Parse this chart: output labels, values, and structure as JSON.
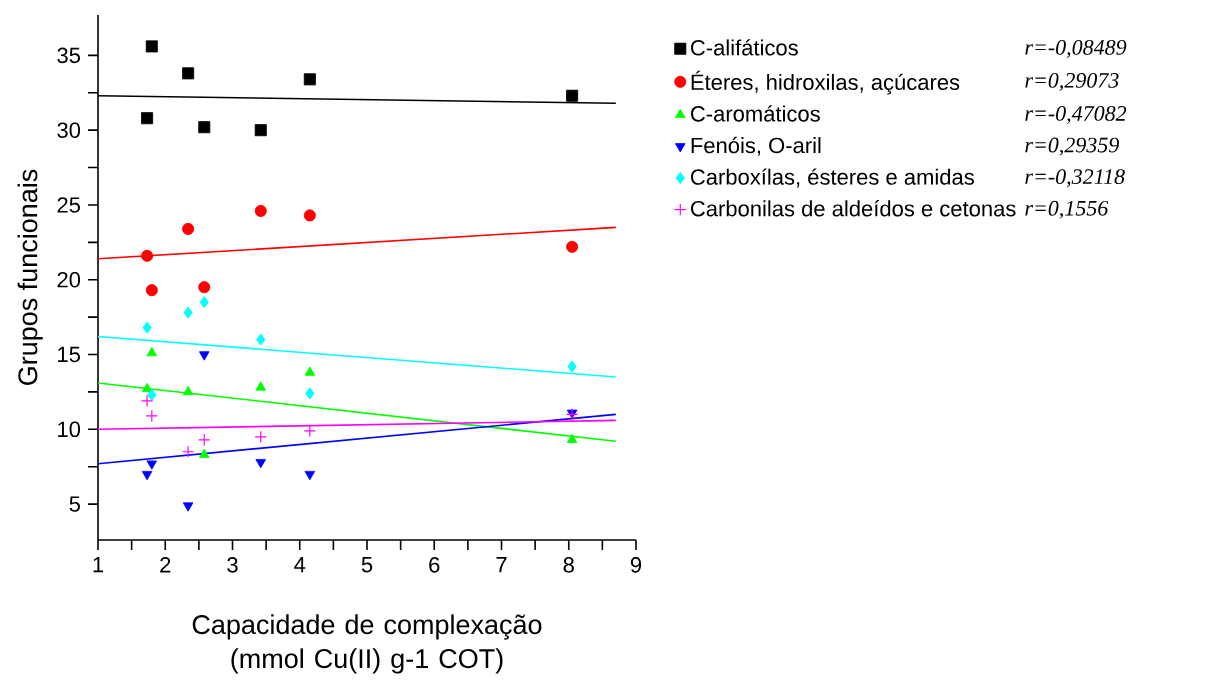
{
  "chart_data": {
    "type": "scatter",
    "xlabel": "Capacidade de complexação (mmol Cu(II) g-1 COT)",
    "ylabel": "Grupos funcionais",
    "xlim": [
      1,
      9
    ],
    "ylim": [
      2.6,
      37.7
    ],
    "xticks": [
      1,
      {
        "value": 1.5,
        "label": null
      },
      2,
      {
        "value": 2.5,
        "label": null
      },
      3,
      {
        "value": 3.5,
        "label": null
      },
      4,
      {
        "value": 4.5,
        "label": null
      },
      5,
      {
        "value": 5.5,
        "label": null
      },
      6,
      {
        "value": 6.5,
        "label": null
      },
      7,
      {
        "value": 7.5,
        "label": null
      },
      8,
      {
        "value": 8.5,
        "label": null
      },
      9
    ],
    "yticks": [
      5,
      {
        "value": 7.5,
        "label": null
      },
      10,
      {
        "value": 12.5,
        "label": null
      },
      15,
      {
        "value": 17.5,
        "label": null
      },
      20,
      {
        "value": 22.5,
        "label": null
      },
      25,
      {
        "value": 27.5,
        "label": null
      },
      30,
      {
        "value": 32.5,
        "label": null
      },
      35
    ],
    "grid": false,
    "legend": "right",
    "annotations": [
      "r=-0,08489",
      "r=0,29073",
      "r=-0,47082",
      "r=0,29359",
      "r=-0,32118",
      "r=0,1556"
    ],
    "series": [
      {
        "name": "C-alifáticos",
        "color": "#000000",
        "marker": "square",
        "x": [
          1.73,
          1.8,
          2.34,
          2.58,
          3.42,
          4.15,
          8.05
        ],
        "values": [
          30.8,
          35.6,
          33.8,
          30.2,
          30.0,
          33.4,
          32.3
        ]
      },
      {
        "name": "Éteres, hidroxilas, açúcares",
        "color": "#ff0000",
        "marker": "circle",
        "x": [
          1.73,
          1.8,
          2.34,
          2.58,
          3.42,
          4.15,
          8.05
        ],
        "values": [
          21.6,
          19.3,
          23.4,
          19.5,
          24.6,
          24.3,
          22.2
        ]
      },
      {
        "name": "C-aromáticos",
        "color": "#00ff00",
        "marker": "triangle",
        "x": [
          1.73,
          1.8,
          2.34,
          2.58,
          3.42,
          4.15,
          8.05
        ],
        "values": [
          12.7,
          15.1,
          12.5,
          8.3,
          12.8,
          13.8,
          9.3
        ]
      },
      {
        "name": "Fenóis, O-aril",
        "color": "#0000ff",
        "marker": "triangle_down",
        "x": [
          1.73,
          1.8,
          2.34,
          2.58,
          3.42,
          4.15,
          8.05
        ],
        "values": [
          7.0,
          7.7,
          4.9,
          15.0,
          7.8,
          7.0,
          11.1
        ]
      },
      {
        "name": "Carboxílas, ésteres e amidas",
        "color": "#00ffff",
        "marker": "diamond",
        "x": [
          1.73,
          1.8,
          2.34,
          2.58,
          3.42,
          4.15,
          8.05
        ],
        "values": [
          16.8,
          12.3,
          17.8,
          18.5,
          16.0,
          12.4,
          14.2
        ]
      },
      {
        "name": "Carbonilas de aldeídos e cetonas",
        "color": "#ff00ff",
        "marker": "cross",
        "x": [
          1.73,
          1.8,
          2.34,
          2.58,
          3.42,
          4.15,
          8.05
        ],
        "values": [
          11.9,
          10.9,
          8.5,
          9.3,
          9.5,
          9.9,
          11.0
        ]
      },
      {
        "type": "line",
        "color": "#000000",
        "x": [
          1,
          8.7
        ],
        "values": [
          32.3,
          31.8
        ]
      },
      {
        "type": "line",
        "color": "#ff0000",
        "x": [
          1,
          8.7
        ],
        "values": [
          21.4,
          23.5
        ]
      },
      {
        "type": "line",
        "color": "#00ff00",
        "x": [
          1,
          8.7
        ],
        "values": [
          13.1,
          9.2
        ]
      },
      {
        "type": "line",
        "color": "#0000ff",
        "x": [
          1,
          8.7
        ],
        "values": [
          7.7,
          11.0
        ]
      },
      {
        "type": "line",
        "color": "#00ffff",
        "x": [
          1,
          8.7
        ],
        "values": [
          16.2,
          13.5
        ]
      },
      {
        "type": "line",
        "color": "#ff00ff",
        "x": [
          1,
          8.7
        ],
        "values": [
          10.0,
          10.6
        ]
      }
    ]
  }
}
